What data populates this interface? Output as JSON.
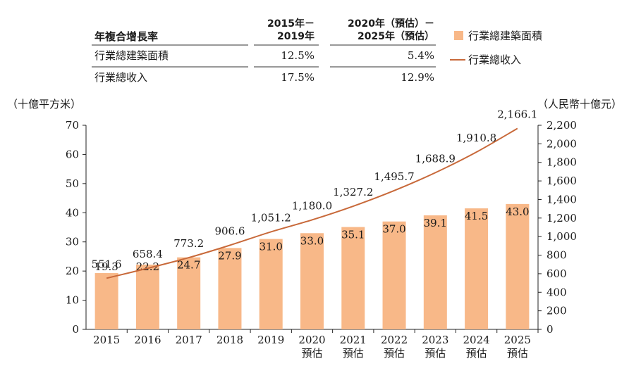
{
  "cagr_table": {
    "title": "年複合增長率",
    "col1_header": [
      "2015年－",
      "2019年"
    ],
    "col2_header": [
      "2020年（預估）－",
      "2025年（預估）"
    ],
    "rows": [
      {
        "label": "行業總建築面積",
        "v1": "12.5%",
        "v2": "5.4%"
      },
      {
        "label": "行業總收入",
        "v1": "17.5%",
        "v2": "12.9%"
      }
    ]
  },
  "legend": {
    "bar_label": "行業總建築面積",
    "line_label": "行業總收入"
  },
  "chart_data": {
    "type": "bar",
    "left_axis_unit": "（十億平方米）",
    "right_axis_unit": "（人民幣十億元）",
    "categories": [
      [
        "2015"
      ],
      [
        "2016"
      ],
      [
        "2017"
      ],
      [
        "2018"
      ],
      [
        "2019"
      ],
      [
        "2020",
        "預估"
      ],
      [
        "2021",
        "預估"
      ],
      [
        "2022",
        "預估"
      ],
      [
        "2023",
        "預估"
      ],
      [
        "2024",
        "預估"
      ],
      [
        "2025",
        "預估"
      ]
    ],
    "series": [
      {
        "name": "行業總建築面積",
        "type": "bar",
        "axis": "left",
        "values": [
          19.3,
          22.2,
          24.7,
          27.9,
          31.0,
          33.0,
          35.1,
          37.0,
          39.1,
          41.5,
          43.0
        ],
        "labels": [
          "19.3",
          "22.2",
          "24.7",
          "27.9",
          "31.0",
          "33.0",
          "35.1",
          "37.0",
          "39.1",
          "41.5",
          "43.0"
        ]
      },
      {
        "name": "行業總收入",
        "type": "line",
        "axis": "right",
        "values": [
          551.6,
          658.4,
          773.2,
          906.6,
          1051.2,
          1180.0,
          1327.2,
          1495.7,
          1688.9,
          1910.8,
          2166.1
        ],
        "labels": [
          "551.6",
          "658.4",
          "773.2",
          "906.6",
          "1,051.2",
          "1,180.0",
          "1,327.2",
          "1,495.7",
          "1,688.9",
          "1,910.8",
          "2,166.1"
        ]
      }
    ],
    "ylim_left": [
      0,
      70
    ],
    "yticks_left": [
      "0",
      "10",
      "20",
      "30",
      "40",
      "50",
      "60",
      "70"
    ],
    "ylim_right": [
      0,
      2200
    ],
    "yticks_right": [
      "0",
      "200",
      "400",
      "600",
      "800",
      "1,000",
      "1,200",
      "1,400",
      "1,600",
      "1,800",
      "2,000",
      "2,200"
    ],
    "bar_color": "#f8b888",
    "line_color": "#c8693a"
  }
}
